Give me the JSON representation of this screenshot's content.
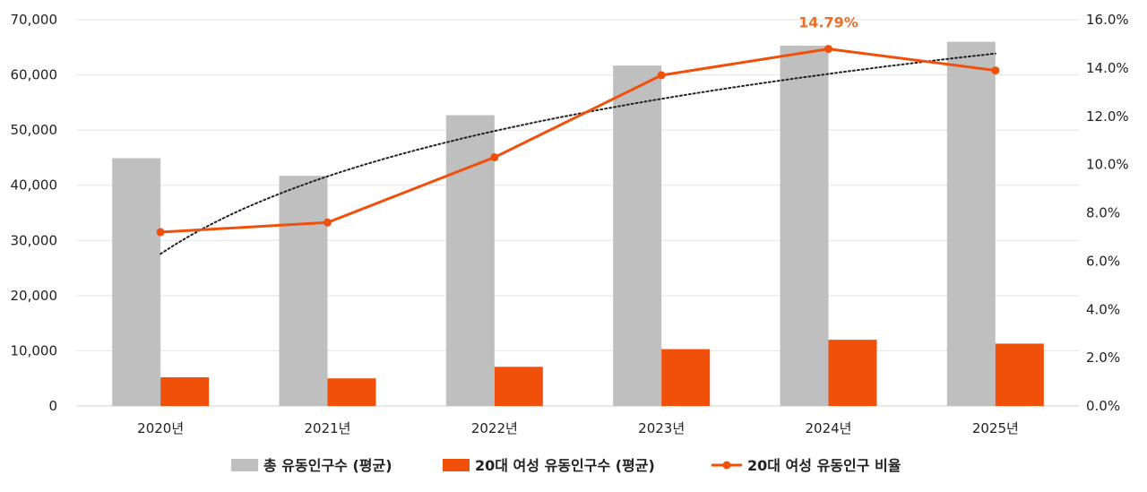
{
  "chart_data": {
    "type": "bar",
    "title": "",
    "categories": [
      "2020년",
      "2021년",
      "2022년",
      "2023년",
      "2024년",
      "2025년"
    ],
    "series": [
      {
        "name": "총 유동인구수 (평균)",
        "type": "bar",
        "axis": "left",
        "color": "#bfbfbf",
        "values": [
          44900,
          41700,
          52700,
          61700,
          65300,
          66000
        ]
      },
      {
        "name": "20대 여성 유동인구수 (평균)",
        "type": "bar",
        "axis": "left",
        "color": "#f0500a",
        "values": [
          5200,
          5000,
          7100,
          10300,
          12000,
          11300
        ]
      },
      {
        "name": "20대 여성 유동인구 비율",
        "type": "line",
        "axis": "right",
        "color": "#f0500a",
        "values": [
          7.2,
          7.6,
          10.3,
          13.7,
          14.79,
          13.9
        ]
      }
    ],
    "trendline": {
      "type": "logarithmic",
      "style": "dotted",
      "color": "#222222",
      "axis": "right",
      "start_value": 6.3,
      "end_value": 14.6
    },
    "y_left": {
      "lim": [
        0,
        70000
      ],
      "ticks": [
        "0",
        "10,000",
        "20,000",
        "30,000",
        "40,000",
        "50,000",
        "60,000",
        "70,000"
      ]
    },
    "y_right": {
      "lim": [
        0,
        16
      ],
      "ticks": [
        "0.0%",
        "2.0%",
        "4.0%",
        "6.0%",
        "8.0%",
        "10.0%",
        "12.0%",
        "14.0%",
        "16.0%"
      ]
    },
    "annotations": [
      {
        "text": "14.79%",
        "category": "2024년",
        "series": "20대 여성 유동인구 비율",
        "color": "#e8702a"
      }
    ],
    "grid": true,
    "legend": "bottom",
    "xlabel": "",
    "ylabel": ""
  }
}
